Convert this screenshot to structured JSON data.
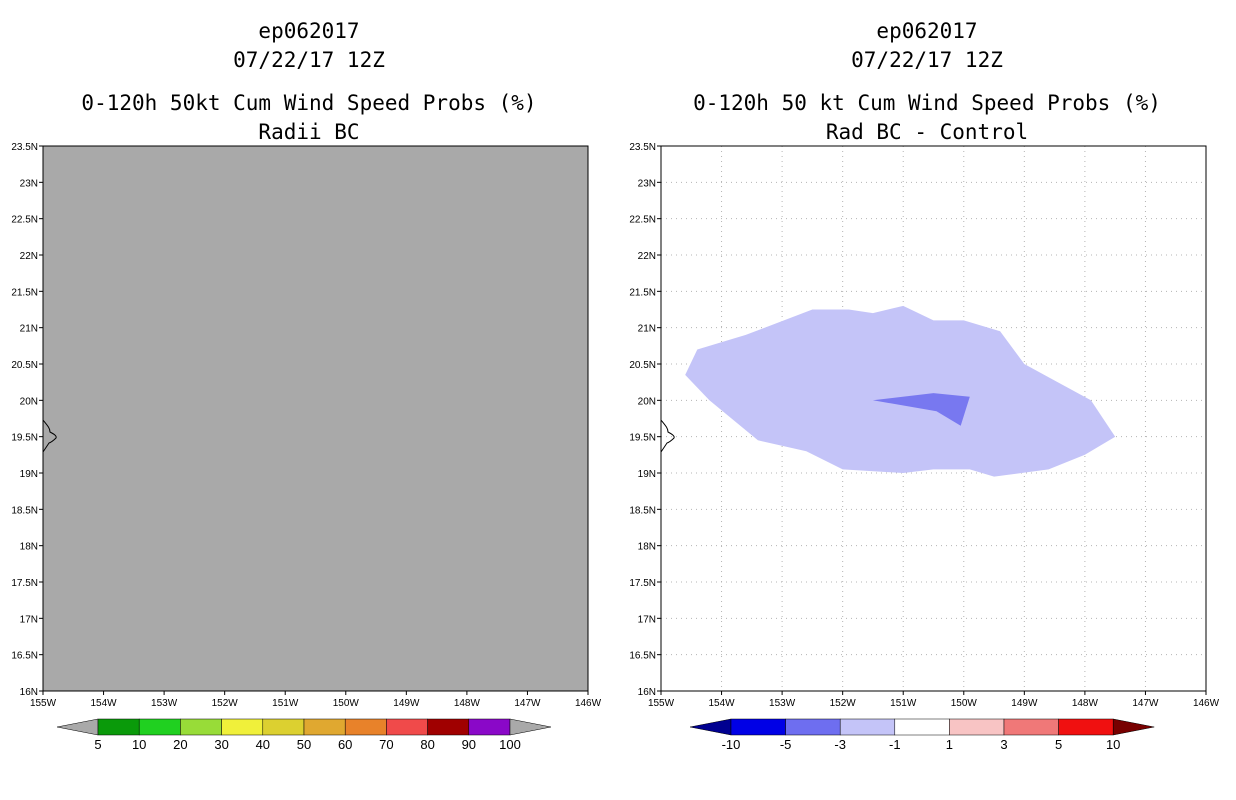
{
  "chart_data": [
    {
      "type": "contour-map",
      "title_lines": [
        "ep062017",
        "07/22/17 12Z",
        "0-120h 50kt Cum Wind Speed Probs (%)",
        "Radii BC"
      ],
      "x_ticks": [
        "155W",
        "154W",
        "153W",
        "152W",
        "151W",
        "150W",
        "149W",
        "148W",
        "147W",
        "146W"
      ],
      "y_ticks": [
        "16N",
        "16.5N",
        "17N",
        "17.5N",
        "18N",
        "18.5N",
        "19N",
        "19.5N",
        "20N",
        "20.5N",
        "21N",
        "21.5N",
        "22N",
        "22.5N",
        "23N",
        "23.5N"
      ],
      "lon_range": [
        -155,
        -146
      ],
      "lat_range": [
        16,
        23.5
      ],
      "grid": false,
      "fill_color": "#a9a9a9",
      "colorbar": {
        "labels": [
          "5",
          "10",
          "20",
          "30",
          "40",
          "50",
          "60",
          "70",
          "80",
          "90",
          "100"
        ],
        "colors": [
          "#0a9a0a",
          "#20d020",
          "#98dc38",
          "#f0f03a",
          "#dcd030",
          "#e0a830",
          "#e8822a",
          "#f04a4a",
          "#a00000",
          "#8a08c8"
        ],
        "under_color": "#a9a9a9",
        "over_color": "#a9a9a9"
      }
    },
    {
      "type": "contour-map",
      "title_lines": [
        "ep062017",
        "07/22/17 12Z",
        "0-120h 50 kt Cum Wind Speed Probs (%)",
        "Rad BC - Control"
      ],
      "x_ticks": [
        "155W",
        "154W",
        "153W",
        "152W",
        "151W",
        "150W",
        "149W",
        "148W",
        "147W",
        "146W"
      ],
      "y_ticks": [
        "16N",
        "16.5N",
        "17N",
        "17.5N",
        "18N",
        "18.5N",
        "19N",
        "19.5N",
        "20N",
        "20.5N",
        "21N",
        "21.5N",
        "22N",
        "22.5N",
        "23N",
        "23.5N"
      ],
      "lon_range": [
        -155,
        -146
      ],
      "lat_range": [
        16,
        23.5
      ],
      "grid": true,
      "regions": [
        {
          "level": "-3 to -1",
          "color": "#c4c4f8",
          "points": [
            [
              -154.6,
              20.35
            ],
            [
              -154.4,
              20.7
            ],
            [
              -153.6,
              20.9
            ],
            [
              -152.5,
              21.25
            ],
            [
              -151.9,
              21.25
            ],
            [
              -151.5,
              21.2
            ],
            [
              -151.0,
              21.3
            ],
            [
              -150.5,
              21.1
            ],
            [
              -150.0,
              21.1
            ],
            [
              -149.4,
              20.95
            ],
            [
              -149.0,
              20.5
            ],
            [
              -147.9,
              20.0
            ],
            [
              -147.5,
              19.5
            ],
            [
              -148.0,
              19.25
            ],
            [
              -148.6,
              19.05
            ],
            [
              -149.5,
              18.95
            ],
            [
              -149.9,
              19.05
            ],
            [
              -150.5,
              19.05
            ],
            [
              -151.0,
              19.0
            ],
            [
              -152.0,
              19.05
            ],
            [
              -152.6,
              19.3
            ],
            [
              -153.4,
              19.45
            ],
            [
              -154.2,
              20.0
            ]
          ]
        },
        {
          "level": "-5 to -3",
          "color": "#7878f0",
          "points": [
            [
              -151.5,
              20.0
            ],
            [
              -150.5,
              20.1
            ],
            [
              -149.9,
              20.05
            ],
            [
              -150.05,
              19.65
            ],
            [
              -150.45,
              19.85
            ]
          ]
        }
      ],
      "coast_note": "coastline",
      "colorbar": {
        "labels": [
          "-10",
          "-5",
          "-3",
          "-1",
          "1",
          "3",
          "5",
          "10"
        ],
        "colors": [
          "#0000e6",
          "#6e6ef0",
          "#c4c4f8",
          "#ffffff",
          "#f8c4c4",
          "#f07878",
          "#f01010"
        ],
        "under_color": "#000090",
        "over_color": "#780000"
      }
    }
  ]
}
